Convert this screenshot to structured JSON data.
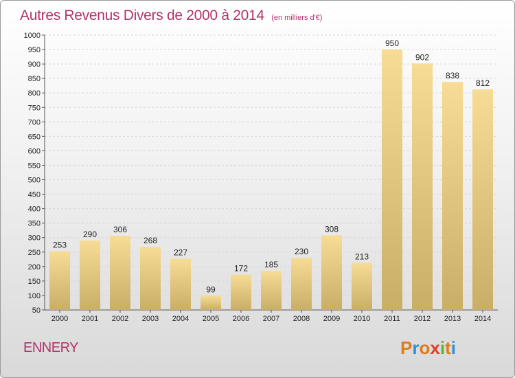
{
  "header": {
    "title": "Autres Revenus Divers de 2000 à 2014",
    "unit": "(en milliers d'€)"
  },
  "footer": {
    "commune": "ENNERY",
    "logo": "Proxiti"
  },
  "colors": {
    "title": "#b0346a",
    "bar_light": "#f7dc95",
    "bar_dark": "#c9ae67",
    "logo_letters": [
      "#e07b1a",
      "#2f8fd6",
      "#e07b1a",
      "#e23c2c",
      "#5cb531",
      "#e07b1a",
      "#2f8fd6"
    ]
  },
  "chart_data": {
    "type": "bar",
    "categories": [
      "2000",
      "2001",
      "2002",
      "2003",
      "2004",
      "2005",
      "2006",
      "2007",
      "2008",
      "2009",
      "2010",
      "2011",
      "2012",
      "2013",
      "2014"
    ],
    "values": [
      253,
      290,
      306,
      268,
      227,
      99,
      172,
      185,
      230,
      308,
      213,
      950,
      902,
      838,
      812
    ],
    "title": "Autres Revenus Divers de 2000 à 2014",
    "subtitle": "(en milliers d'€)",
    "xlabel": "",
    "ylabel": "",
    "ylim": [
      50,
      1000
    ],
    "yticks": [
      50,
      100,
      150,
      200,
      250,
      300,
      350,
      400,
      450,
      500,
      550,
      600,
      650,
      700,
      750,
      800,
      850,
      900,
      950,
      1000
    ],
    "grid": true,
    "legend": "none"
  }
}
